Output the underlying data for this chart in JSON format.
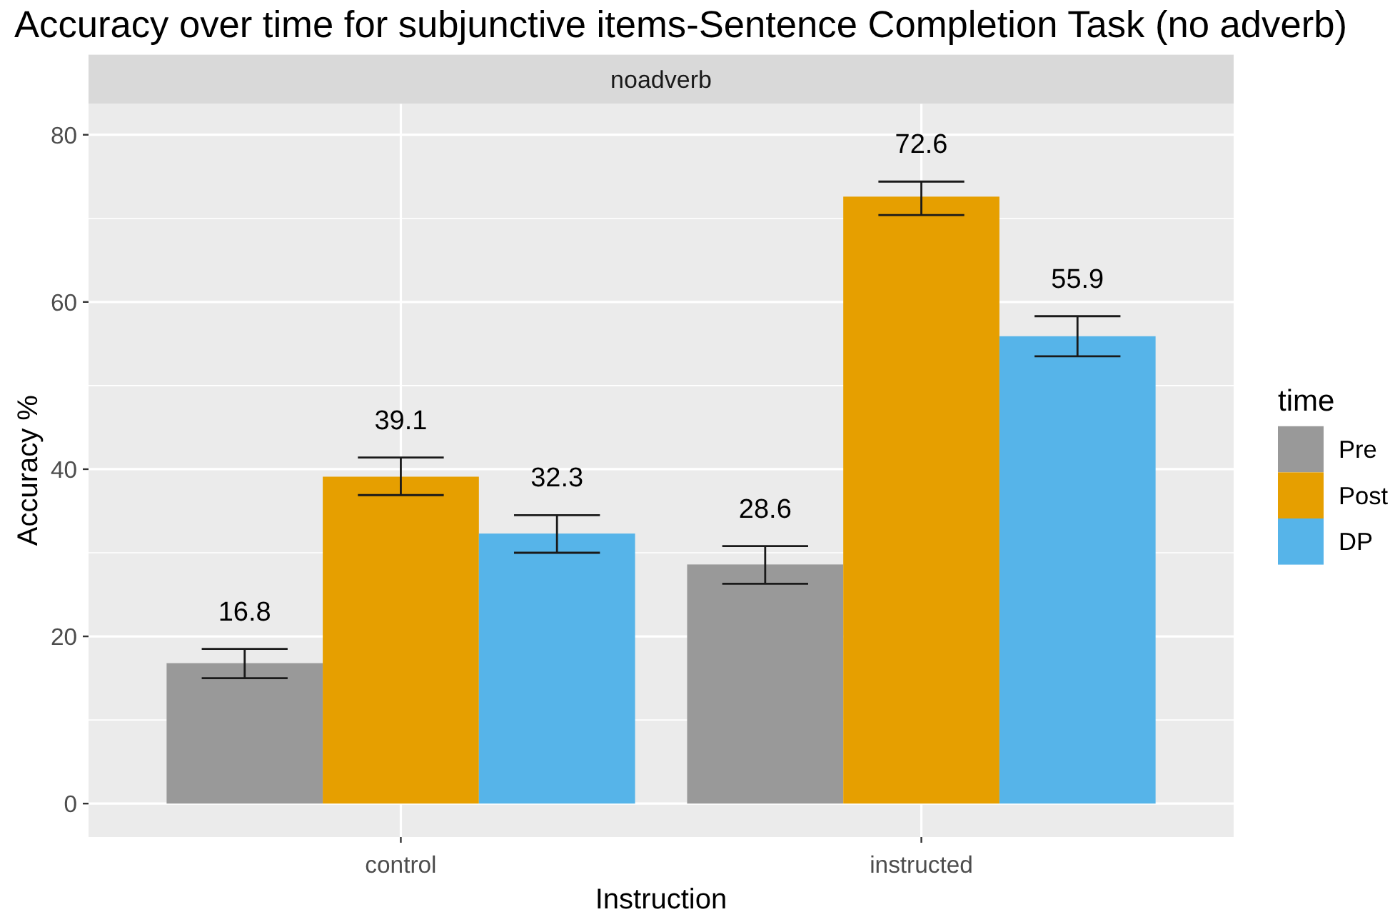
{
  "chart_data": {
    "type": "bar",
    "title": "Accuracy over time for subjunctive items-Sentence Completion Task (no adverb)",
    "subtitle": "noadverb",
    "xlabel": "Instruction",
    "ylabel": "Accuracy %",
    "legend_title": "time",
    "categories": [
      "control",
      "instructed"
    ],
    "series": [
      {
        "name": "Pre",
        "color": "#999999",
        "values": [
          16.8,
          28.6
        ],
        "errors": [
          [
            15.0,
            18.5
          ],
          [
            26.3,
            30.8
          ]
        ]
      },
      {
        "name": "Post",
        "color": "#e69f00",
        "values": [
          39.1,
          72.6
        ],
        "errors": [
          [
            36.9,
            41.4
          ],
          [
            70.4,
            74.4
          ]
        ]
      },
      {
        "name": "DP",
        "color": "#56b4e9",
        "values": [
          32.3,
          55.9
        ],
        "errors": [
          [
            30.0,
            34.5
          ],
          [
            53.5,
            58.3
          ]
        ]
      }
    ],
    "ylim": [
      -4,
      83.7
    ],
    "yticks": [
      0,
      {
        "value": 10,
        "label": null
      },
      20,
      {
        "value": 30,
        "label": null
      },
      40,
      {
        "value": 50,
        "label": null
      },
      60,
      {
        "value": 70,
        "label": null
      },
      80
    ],
    "grid": true,
    "legend": "right",
    "data_labels": true
  }
}
